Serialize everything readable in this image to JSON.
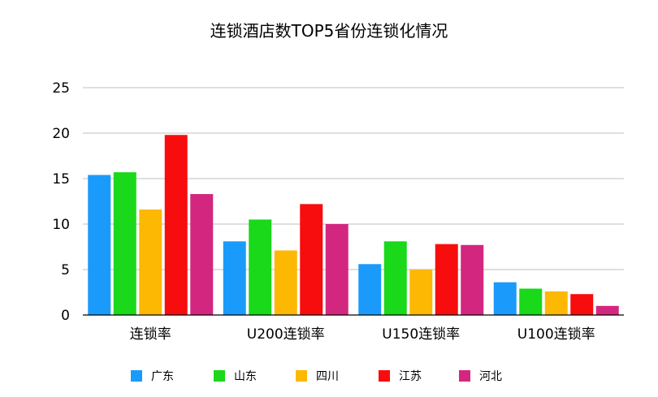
{
  "chart_data": {
    "type": "bar",
    "title": "连锁酒店数TOP5省份连锁化情况",
    "xlabel": "",
    "ylabel": "",
    "ylim": [
      0,
      25
    ],
    "yticks": [
      0,
      5,
      10,
      15,
      20,
      25
    ],
    "grid": true,
    "legend_position": "bottom",
    "categories": [
      "连锁率",
      "U200连锁率",
      "U150连锁率",
      "U100连锁率"
    ],
    "series": [
      {
        "name": "广东",
        "color": "#1a9bfc",
        "values": [
          15.4,
          8.1,
          5.6,
          3.6
        ]
      },
      {
        "name": "山东",
        "color": "#1ad81a",
        "values": [
          15.7,
          10.5,
          8.1,
          2.9
        ]
      },
      {
        "name": "四川",
        "color": "#fdb804",
        "values": [
          11.6,
          7.1,
          5.0,
          2.6
        ]
      },
      {
        "name": "江苏",
        "color": "#f70d0d",
        "values": [
          19.8,
          12.2,
          7.8,
          2.3
        ]
      },
      {
        "name": "河北",
        "color": "#d3277f",
        "values": [
          13.3,
          10.0,
          7.7,
          1.0
        ]
      }
    ]
  }
}
